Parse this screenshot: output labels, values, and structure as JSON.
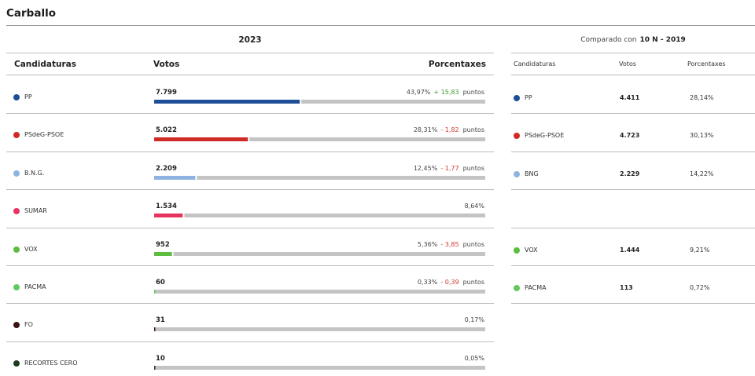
{
  "page": {
    "title": "Carballo",
    "year_label": "2023",
    "compare_label": "Comparado con",
    "compare_election": "10 N - 2019"
  },
  "headers": {
    "candidaturas": "Candidaturas",
    "votos": "Votos",
    "porcentaxes": "Porcentaxes"
  },
  "points_label": "puntos",
  "colors": {
    "track": "#c4c4c4",
    "up": "#3e9a2f",
    "down": "#d23a2e"
  },
  "chart_data": {
    "type": "bar",
    "categories": [
      "PP",
      "PSdeG-PSOE",
      "B.N.G.",
      "SUMAR",
      "VOX",
      "PACMA",
      "FO",
      "RECORTES CERO"
    ],
    "series": [
      {
        "name": "Votos",
        "values": [
          7799,
          5022,
          2209,
          1534,
          952,
          60,
          31,
          10
        ]
      },
      {
        "name": "Porcentaxes",
        "values": [
          43.97,
          28.31,
          12.45,
          8.64,
          5.36,
          0.33,
          0.17,
          0.05
        ]
      }
    ],
    "rows": [
      {
        "name": "PP",
        "color": "#1f4e99",
        "votes": "7.799",
        "pct": "43,97%",
        "pct_value": 43.97,
        "diff": "+ 15,83",
        "diff_dir": "up"
      },
      {
        "name": "PSdeG-PSOE",
        "color": "#cf2a25",
        "votes": "5.022",
        "pct": "28,31%",
        "pct_value": 28.31,
        "diff": "- 1,82",
        "diff_dir": "down"
      },
      {
        "name": "B.N.G.",
        "color": "#8fb3e0",
        "votes": "2.209",
        "pct": "12,45%",
        "pct_value": 12.45,
        "diff": "- 1,77",
        "diff_dir": "down"
      },
      {
        "name": "SUMAR",
        "color": "#e8335f",
        "votes": "1.534",
        "pct": "8,64%",
        "pct_value": 8.64,
        "diff": "",
        "diff_dir": ""
      },
      {
        "name": "VOX",
        "color": "#5cbd3f",
        "votes": "952",
        "pct": "5,36%",
        "pct_value": 5.36,
        "diff": "- 3,85",
        "diff_dir": "down"
      },
      {
        "name": "PACMA",
        "color": "#62c95e",
        "votes": "60",
        "pct": "0,33%",
        "pct_value": 0.33,
        "diff": "- 0,39",
        "diff_dir": "down"
      },
      {
        "name": "FO",
        "color": "#3a1410",
        "votes": "31",
        "pct": "0,17%",
        "pct_value": 0.17,
        "diff": "",
        "diff_dir": ""
      },
      {
        "name": "RECORTES CERO",
        "color": "#1c3d1c",
        "votes": "10",
        "pct": "0,05%",
        "pct_value": 0.05,
        "diff": "",
        "diff_dir": ""
      }
    ],
    "comparison": [
      {
        "name": "PP",
        "color": "#1f4e99",
        "votes": "4.411",
        "pct": "28,14%",
        "slot": 0
      },
      {
        "name": "PSdeG-PSOE",
        "color": "#cf2a25",
        "votes": "4.723",
        "pct": "30,13%",
        "slot": 1
      },
      {
        "name": "BNG",
        "color": "#8fb3e0",
        "votes": "2.229",
        "pct": "14,22%",
        "slot": 2
      },
      {
        "name": "VOX",
        "color": "#5cbd3f",
        "votes": "1.444",
        "pct": "9,21%",
        "slot": 4
      },
      {
        "name": "PACMA",
        "color": "#62c95e",
        "votes": "113",
        "pct": "0,72%",
        "slot": 5
      }
    ]
  }
}
